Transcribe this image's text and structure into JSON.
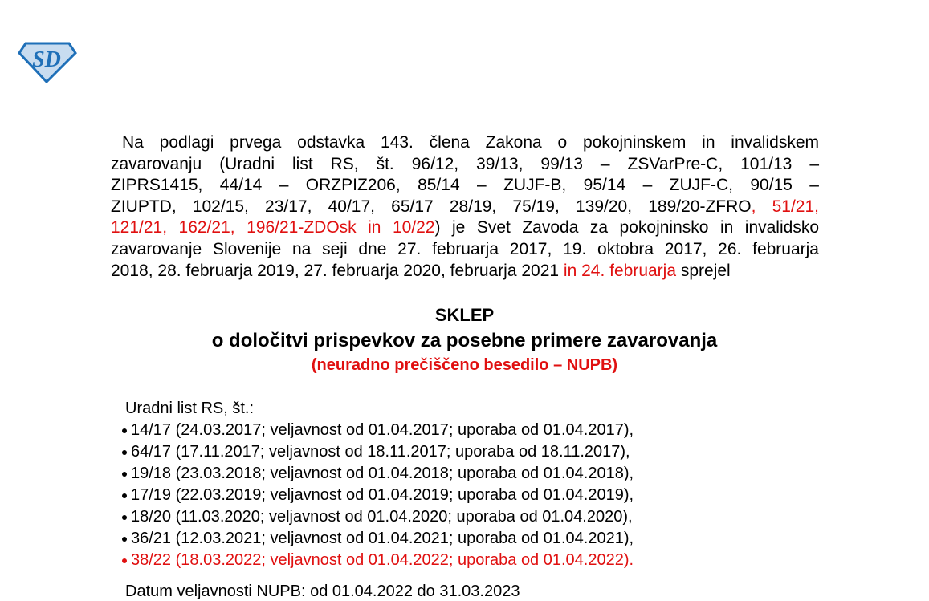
{
  "logo": {
    "text": "SD",
    "colors": {
      "outline": "#1e6fb8",
      "fill": "#c8dcf0"
    }
  },
  "preamble": {
    "lines": [
      [
        {
          "text": "Na podlagi prvega odstavka 143. člena Zakona o pokojninskem in invalidskem",
          "red": false
        }
      ],
      [
        {
          "text": "zavarovanju (Uradni list RS, št. 96/12, 39/13, 99/13 – ZSVarPre-C, 101/13 –",
          "red": false
        }
      ],
      [
        {
          "text": "ZIPRS1415, 44/14 – ORZPIZ206, 85/14 – ZUJF-B, 95/14 – ZUJF-C, 90/15 –",
          "red": false
        }
      ],
      [
        {
          "text": "ZIUPTD, 102/15, 23/17, 40/17, 65/17 28/19, 75/19, 139/20, 189/20-ZFRO",
          "red": false
        },
        {
          "text": ", 51/21,",
          "red": true
        }
      ],
      [
        {
          "text": "121/21, 162/21, 196/21-ZDOsk in 10/22",
          "red": true
        },
        {
          "text": ") je Svet Zavoda za pokojninsko in invalidsko",
          "red": false
        }
      ],
      [
        {
          "text": "zavarovanje Slovenije na seji dne 27. februarja 2017, 19. oktobra 2017, 26. februarja",
          "red": false
        }
      ],
      [
        {
          "text": "2018, 28. februarja 2019, 27. februarja 2020, februarja 2021 ",
          "red": false
        },
        {
          "text": "in 24. februarja",
          "red": true
        },
        {
          "text": " sprejel",
          "red": false
        }
      ]
    ]
  },
  "title": "SKLEP",
  "subtitle": "o določitvi prispevkov za posebne primere zavarovanja",
  "note": "(neuradno prečiščeno besedilo – NUPB)",
  "gazette": {
    "header": "Uradni list RS, št.:",
    "items": [
      {
        "text": "14/17 (24.03.2017; veljavnost od 01.04.2017; uporaba od 01.04.2017),",
        "red": false
      },
      {
        "text": "64/17 (17.11.2017; veljavnost od 18.11.2017; uporaba od 18.11.2017),",
        "red": false
      },
      {
        "text": "19/18 (23.03.2018; veljavnost od 01.04.2018; uporaba od 01.04.2018),",
        "red": false
      },
      {
        "text": "17/19 (22.03.2019; veljavnost od 01.04.2019; uporaba od 01.04.2019),",
        "red": false
      },
      {
        "text": "18/20 (11.03.2020; veljavnost od 01.04.2020; uporaba od 01.04.2020),",
        "red": false
      },
      {
        "text": "36/21 (12.03.2021; veljavnost od 01.04.2021; uporaba od 01.04.2021),",
        "red": false
      },
      {
        "text": "38/22 (18.03.2022; veljavnost od 01.04.2022; uporaba od 01.04.2022).",
        "red": true
      }
    ]
  },
  "validity": "Datum veljavnosti NUPB: od 01.04.2022 do 31.03.2023"
}
